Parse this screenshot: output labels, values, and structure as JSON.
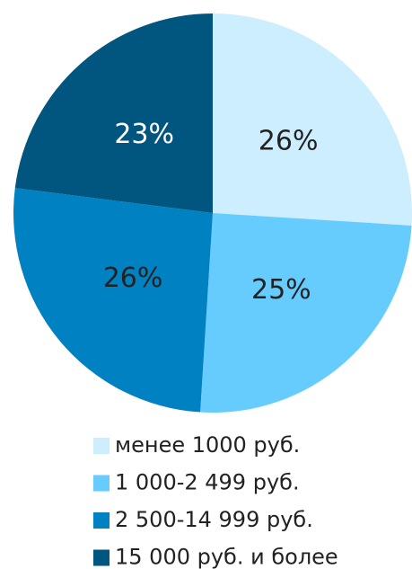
{
  "chart_data": {
    "type": "pie",
    "categories": [
      "менее 1000 руб.",
      "1 000-2 499 руб.",
      "2 500-14 999 руб.",
      "15 000 руб. и более"
    ],
    "values": [
      26,
      25,
      26,
      23
    ],
    "value_labels": [
      "26%",
      "25%",
      "26%",
      "23%"
    ],
    "colors": [
      "#cdeefe",
      "#66cbfd",
      "#0081c2",
      "#00567f"
    ],
    "legend": "bottom"
  }
}
